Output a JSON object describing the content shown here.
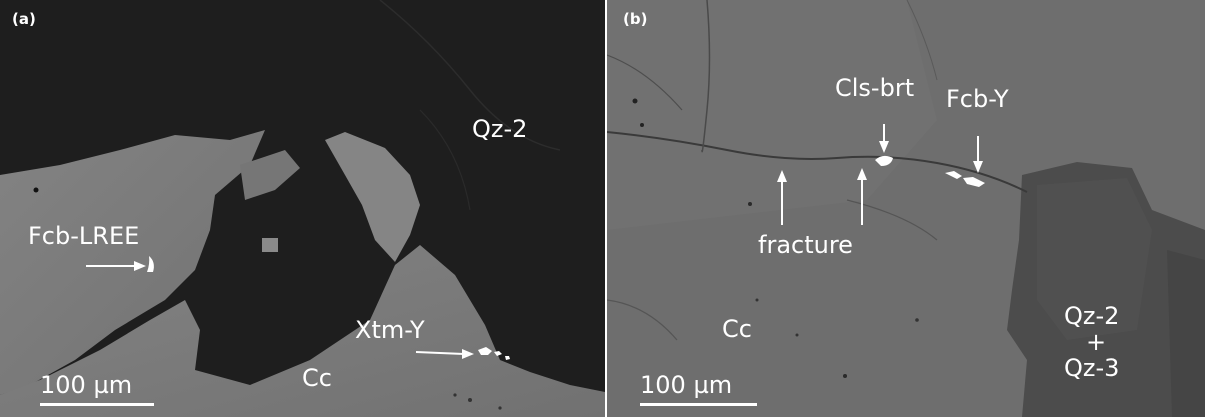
{
  "panel_a": {
    "letter": "(a)",
    "labels": {
      "qz2": "Qz-2",
      "fcb_lree": "Fcb-LREE",
      "xtm_y": "Xtm-Y",
      "cc": "Cc"
    },
    "scale_bar": "100 µm"
  },
  "panel_b": {
    "letter": "(b)",
    "labels": {
      "cls_brt": "Cls-brt",
      "fcb_y": "Fcb-Y",
      "fracture": "fracture",
      "cc": "Cc",
      "qz_line1": "Qz-2",
      "qz_plus": "+",
      "qz_line2": "Qz-3"
    },
    "scale_bar": "100 µm"
  },
  "colors": {
    "panel_a_dark": "#1e1e1e",
    "panel_a_light": "#7e7e7e",
    "panel_b_background": "#6c6c6c",
    "panel_b_quartz": "#4a4a4a",
    "text": "#ffffff"
  }
}
